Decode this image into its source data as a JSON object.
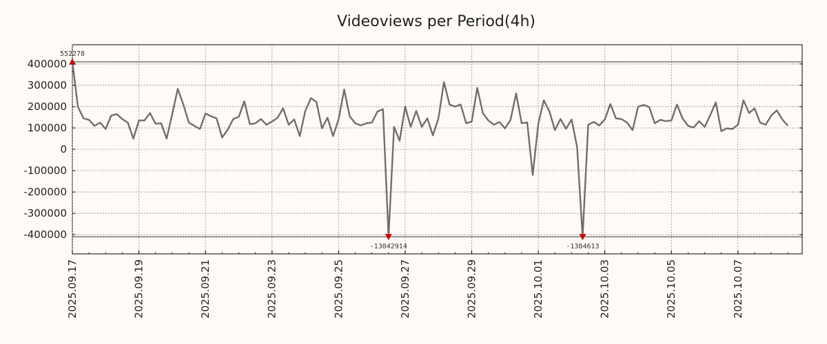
{
  "chart_data": {
    "type": "line",
    "title": "Videoviews per Period(4h)",
    "xlabel": "",
    "ylabel": "",
    "ylim": [
      -490000,
      490000
    ],
    "yticks": [
      400000,
      300000,
      200000,
      100000,
      0,
      -100000,
      -200000,
      -300000,
      -400000
    ],
    "ytick_labels": [
      "400000",
      "300000",
      "200000",
      "100000",
      "0",
      "-100000",
      "-200000",
      "-300000",
      "-400000"
    ],
    "xlim_days": [
      0,
      21.93
    ],
    "xticks_days": [
      0,
      2,
      4,
      6,
      8,
      10,
      12,
      14,
      16,
      18,
      20
    ],
    "xtick_labels": [
      "2025.09.17",
      "2025.09.19",
      "2025.09.21",
      "2025.09.23",
      "2025.09.25",
      "2025.09.27",
      "2025.09.29",
      "2025.10.01",
      "2025.10.03",
      "2025.10.05",
      "2025.10.07"
    ],
    "grid": true,
    "clip_lines": [
      410000,
      -410000
    ],
    "series": [
      {
        "name": "videoviews",
        "color": "#6e6e6e",
        "values": [
          410000,
          200000,
          145000,
          138000,
          110000,
          125000,
          95000,
          158000,
          165000,
          142000,
          125000,
          50000,
          135000,
          135000,
          170000,
          120000,
          122000,
          50000,
          165000,
          283000,
          210000,
          125000,
          110000,
          95000,
          168000,
          155000,
          145000,
          55000,
          92000,
          142000,
          152000,
          225000,
          118000,
          122000,
          142000,
          115000,
          130000,
          148000,
          192000,
          115000,
          140000,
          62000,
          180000,
          240000,
          222000,
          98000,
          148000,
          62000,
          140000,
          280000,
          155000,
          122000,
          112000,
          122000,
          125000,
          177000,
          188000,
          -410000,
          105000,
          40000,
          200000,
          105000,
          180000,
          105000,
          145000,
          65000,
          145000,
          315000,
          210000,
          200000,
          210000,
          122000,
          130000,
          288000,
          170000,
          135000,
          115000,
          128000,
          98000,
          138000,
          262000,
          122000,
          126000,
          -120000,
          120000,
          230000,
          178000,
          90000,
          142000,
          96000,
          140000,
          10000,
          -410000,
          115000,
          128000,
          112000,
          140000,
          212000,
          145000,
          142000,
          125000,
          90000,
          200000,
          208000,
          198000,
          122000,
          138000,
          132000,
          135000,
          210000,
          145000,
          110000,
          102000,
          132000,
          105000,
          160000,
          220000,
          85000,
          98000,
          95000,
          115000,
          230000,
          170000,
          192000,
          125000,
          115000,
          158000,
          182000,
          140000,
          110000
        ]
      }
    ],
    "annotations": [
      {
        "label": "552278",
        "index": 0,
        "direction": "up"
      },
      {
        "label": "-13042914",
        "index": 57,
        "direction": "down"
      },
      {
        "label": "-1384613",
        "index": 92,
        "direction": "down"
      }
    ],
    "marker_color": "#cc0000"
  }
}
